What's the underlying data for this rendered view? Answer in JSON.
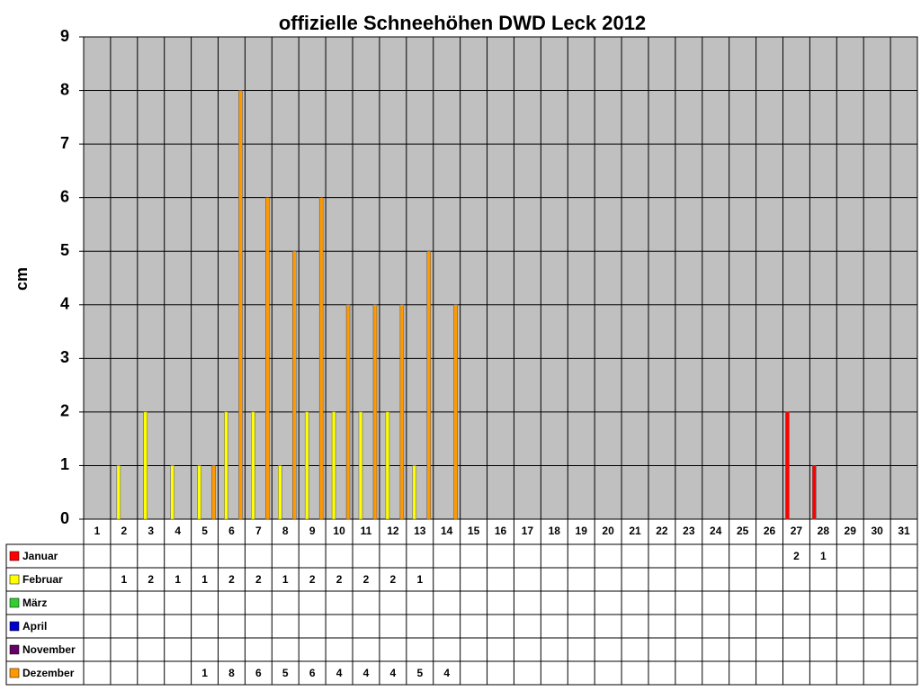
{
  "chart_data": {
    "type": "bar",
    "title": "offizielle Schneehöhen DWD Leck 2012",
    "y_label": "cm",
    "categories": [
      "1",
      "2",
      "3",
      "4",
      "5",
      "6",
      "7",
      "8",
      "9",
      "10",
      "11",
      "12",
      "13",
      "14",
      "15",
      "16",
      "17",
      "18",
      "19",
      "20",
      "21",
      "22",
      "23",
      "24",
      "25",
      "26",
      "27",
      "28",
      "29",
      "30",
      "31"
    ],
    "ylim": [
      0,
      9
    ],
    "yticks": [
      0,
      1,
      2,
      3,
      4,
      5,
      6,
      7,
      8,
      9
    ],
    "grid": true,
    "series": [
      {
        "name": "Januar",
        "color": "#ff0000",
        "values": [
          null,
          null,
          null,
          null,
          null,
          null,
          null,
          null,
          null,
          null,
          null,
          null,
          null,
          null,
          null,
          null,
          null,
          null,
          null,
          null,
          null,
          null,
          null,
          null,
          null,
          null,
          2,
          1,
          null,
          null,
          null
        ]
      },
      {
        "name": "Februar",
        "color": "#ffff00",
        "values": [
          null,
          1,
          2,
          1,
          1,
          2,
          2,
          1,
          2,
          2,
          2,
          2,
          1,
          null,
          null,
          null,
          null,
          null,
          null,
          null,
          null,
          null,
          null,
          null,
          null,
          null,
          null,
          null,
          null,
          null,
          null
        ]
      },
      {
        "name": "März",
        "color": "#33cc33",
        "values": [
          null,
          null,
          null,
          null,
          null,
          null,
          null,
          null,
          null,
          null,
          null,
          null,
          null,
          null,
          null,
          null,
          null,
          null,
          null,
          null,
          null,
          null,
          null,
          null,
          null,
          null,
          null,
          null,
          null,
          null,
          null
        ]
      },
      {
        "name": "April",
        "color": "#0000cc",
        "values": [
          null,
          null,
          null,
          null,
          null,
          null,
          null,
          null,
          null,
          null,
          null,
          null,
          null,
          null,
          null,
          null,
          null,
          null,
          null,
          null,
          null,
          null,
          null,
          null,
          null,
          null,
          null,
          null,
          null,
          null,
          null
        ]
      },
      {
        "name": "November",
        "color": "#660066",
        "values": [
          null,
          null,
          null,
          null,
          null,
          null,
          null,
          null,
          null,
          null,
          null,
          null,
          null,
          null,
          null,
          null,
          null,
          null,
          null,
          null,
          null,
          null,
          null,
          null,
          null,
          null,
          null,
          null,
          null,
          null,
          null
        ]
      },
      {
        "name": "Dezember",
        "color": "#ff9900",
        "values": [
          null,
          null,
          null,
          null,
          1,
          8,
          6,
          5,
          6,
          4,
          4,
          4,
          5,
          4,
          null,
          null,
          null,
          null,
          null,
          null,
          null,
          null,
          null,
          null,
          null,
          null,
          null,
          null,
          null,
          null,
          null
        ]
      }
    ]
  }
}
